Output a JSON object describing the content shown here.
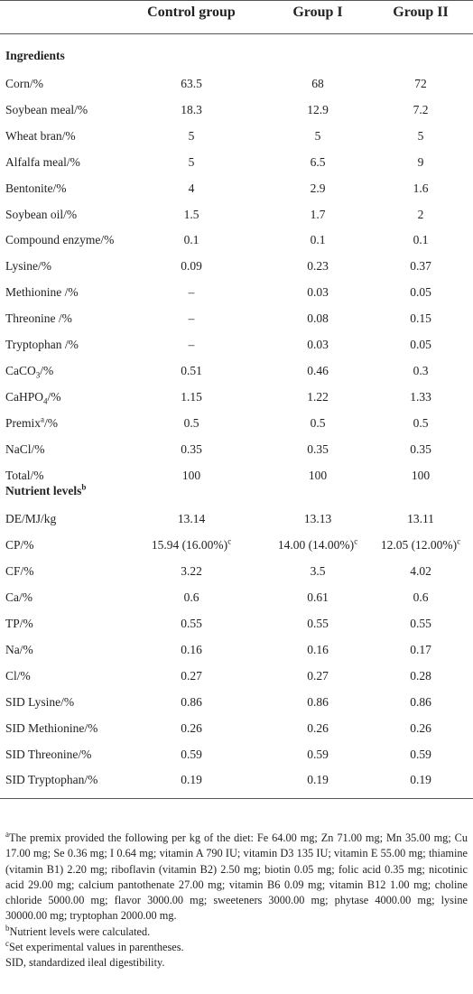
{
  "header": [
    "Control group",
    "Group I",
    "Group II"
  ],
  "sections": [
    {
      "heading": [
        {
          "t": "Ingredients"
        }
      ],
      "rows": [
        {
          "label": "Corn/%",
          "values": [
            "63.5",
            "68",
            "72"
          ]
        },
        {
          "label": "Soybean meal/%",
          "values": [
            "18.3",
            "12.9",
            "7.2"
          ]
        },
        {
          "label": "Wheat bran/%",
          "values": [
            "5",
            "5",
            "5"
          ]
        },
        {
          "label": "Alfalfa meal/%",
          "values": [
            "5",
            "6.5",
            "9"
          ]
        },
        {
          "label": "Bentonite/%",
          "values": [
            "4",
            "2.9",
            "1.6"
          ]
        },
        {
          "label": "Soybean oil/%",
          "values": [
            "1.5",
            "1.7",
            "2"
          ]
        },
        {
          "label": "Compound enzyme/%",
          "values": [
            "0.1",
            "0.1",
            "0.1"
          ]
        },
        {
          "label": "Lysine/%",
          "values": [
            "0.09",
            "0.23",
            "0.37"
          ]
        },
        {
          "label": "Methionine /%",
          "values": [
            "–",
            "0.03",
            "0.05"
          ]
        },
        {
          "label": "Threonine /%",
          "values": [
            "–",
            "0.08",
            "0.15"
          ]
        },
        {
          "label": "Tryptophan /%",
          "values": [
            "–",
            "0.03",
            "0.05"
          ]
        },
        {
          "label": [
            {
              "t": "CaCO"
            },
            {
              "sub": "3"
            },
            {
              "t": "/%"
            }
          ],
          "values": [
            "0.51",
            "0.46",
            "0.3"
          ]
        },
        {
          "label": [
            {
              "t": "CaHPO"
            },
            {
              "sub": "4"
            },
            {
              "t": "/%"
            }
          ],
          "values": [
            "1.15",
            "1.22",
            "1.33"
          ]
        },
        {
          "label": [
            {
              "t": "Premix"
            },
            {
              "sup": "a"
            },
            {
              "t": "/%"
            }
          ],
          "values": [
            "0.5",
            "0.5",
            "0.5"
          ]
        },
        {
          "label": "NaCl/%",
          "values": [
            "0.35",
            "0.35",
            "0.35"
          ]
        },
        {
          "label": "Total/%",
          "values": [
            "100",
            "100",
            "100"
          ]
        }
      ]
    },
    {
      "heading": [
        {
          "t": "Nutrient levels"
        },
        {
          "sup": "b"
        }
      ],
      "rows": [
        {
          "label": "DE/MJ/kg",
          "values": [
            "13.14",
            "13.13",
            "13.11"
          ]
        },
        {
          "label": "CP/%",
          "values": [
            [
              {
                "t": "15.94 (16.00%)"
              },
              {
                "sup": "c"
              }
            ],
            [
              {
                "t": "14.00 (14.00%)"
              },
              {
                "sup": "c"
              }
            ],
            [
              {
                "t": "12.05 (12.00%)"
              },
              {
                "sup": "c"
              }
            ]
          ]
        },
        {
          "label": "CF/%",
          "values": [
            "3.22",
            "3.5",
            "4.02"
          ]
        },
        {
          "label": "Ca/%",
          "values": [
            "0.6",
            "0.61",
            "0.6"
          ]
        },
        {
          "label": "TP/%",
          "values": [
            "0.55",
            "0.55",
            "0.55"
          ]
        },
        {
          "label": "Na/%",
          "values": [
            "0.16",
            "0.16",
            "0.17"
          ]
        },
        {
          "label": "Cl/%",
          "values": [
            "0.27",
            "0.27",
            "0.28"
          ]
        },
        {
          "label": "SID Lysine/%",
          "values": [
            "0.86",
            "0.86",
            "0.86"
          ]
        },
        {
          "label": "SID Methionine/%",
          "values": [
            "0.26",
            "0.26",
            "0.26"
          ]
        },
        {
          "label": "SID Threonine/%",
          "values": [
            "0.59",
            "0.59",
            "0.59"
          ]
        },
        {
          "label": "SID Tryptophan/%",
          "values": [
            "0.19",
            "0.19",
            "0.19"
          ]
        }
      ]
    }
  ],
  "footnotes": [
    [
      {
        "sup": "a"
      },
      {
        "t": "The premix provided the following per kg of the diet: Fe 64.00 mg; Zn 71.00 mg; Mn 35.00 mg; Cu 17.00 mg; Se 0.36 mg; I 0.64 mg; vitamin A 790 IU; vitamin D3 135 IU; vitamin E 55.00 mg; thiamine (vitamin B1) 2.20 mg; riboflavin (vitamin B2) 2.50 mg; biotin 0.05 mg; folic acid 0.35 mg; nicotinic acid 29.00 mg; calcium pantothenate 27.00 mg; vitamin B6 0.09 mg; vitamin B12 1.00 mg; choline chloride 5000.00 mg; flavor 3000.00 mg; sweeteners 3000.00 mg; phytase 4000.00 mg; lysine 30000.00 mg; tryptophan 2000.00 mg."
      }
    ],
    [
      {
        "sup": "b"
      },
      {
        "t": "Nutrient levels were calculated."
      }
    ],
    [
      {
        "sup": "c"
      },
      {
        "t": "Set experimental values in parentheses."
      }
    ],
    "SID, standardized ileal digestibility."
  ]
}
